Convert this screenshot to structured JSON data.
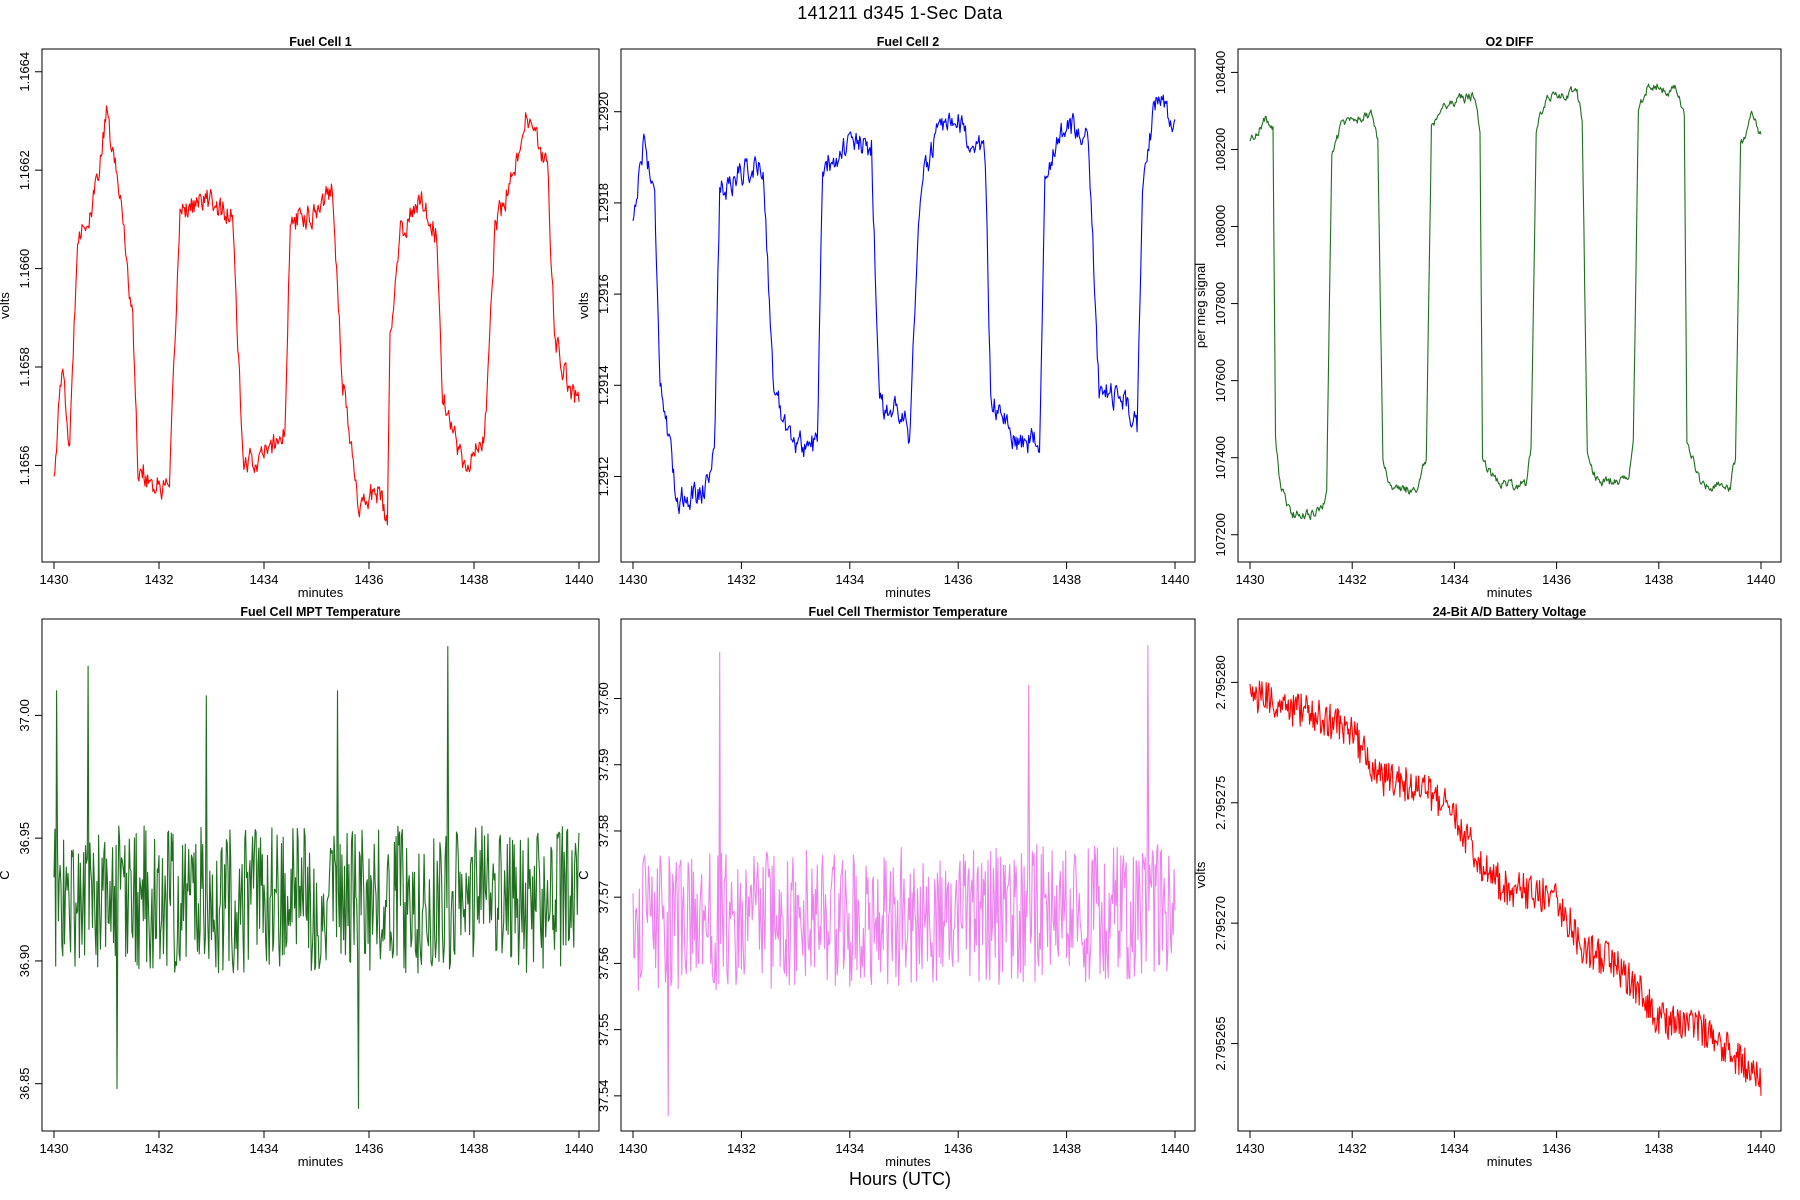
{
  "figure": {
    "title": "141211   d345   1-Sec Data",
    "xcaption": "Hours (UTC)"
  },
  "chart_data": [
    {
      "type": "line",
      "title": "Fuel Cell 1",
      "xlabel": "minutes",
      "ylabel": "volts",
      "color": "#ff0000",
      "xlim": [
        1430,
        1440
      ],
      "ylim": [
        1.16542,
        1.16643
      ],
      "xticks": [
        1430,
        1432,
        1434,
        1436,
        1438,
        1440
      ],
      "yticks": [
        1.1656,
        1.1658,
        1.166,
        1.1662,
        1.1664
      ],
      "ytick_labels": [
        "1.1656",
        "1.1658",
        "1.1660",
        "1.1662",
        "1.1664"
      ],
      "anchors": [
        [
          1430,
          1.16558
        ],
        [
          1430.15,
          1.1658
        ],
        [
          1430.3,
          1.16563
        ],
        [
          1430.45,
          1.16608
        ],
        [
          1430.7,
          1.1661
        ],
        [
          1431,
          1.16631
        ],
        [
          1431.3,
          1.16612
        ],
        [
          1431.5,
          1.16589
        ],
        [
          1431.6,
          1.1656
        ],
        [
          1431.9,
          1.16556
        ],
        [
          1432.2,
          1.16555
        ],
        [
          1432.4,
          1.16612
        ],
        [
          1433,
          1.16614
        ],
        [
          1433.4,
          1.1661
        ],
        [
          1433.6,
          1.1656
        ],
        [
          1434,
          1.16562
        ],
        [
          1434.4,
          1.16567
        ],
        [
          1434.5,
          1.16609
        ],
        [
          1435,
          1.16612
        ],
        [
          1435.3,
          1.16617
        ],
        [
          1435.5,
          1.16577
        ],
        [
          1435.8,
          1.16552
        ],
        [
          1436.2,
          1.16555
        ],
        [
          1436.35,
          1.16547
        ],
        [
          1436.4,
          1.16585
        ],
        [
          1436.6,
          1.16607
        ],
        [
          1437,
          1.16615
        ],
        [
          1437.3,
          1.16606
        ],
        [
          1437.4,
          1.16575
        ],
        [
          1437.8,
          1.1656
        ],
        [
          1438.2,
          1.16565
        ],
        [
          1438.4,
          1.16608
        ],
        [
          1438.8,
          1.16621
        ],
        [
          1439,
          1.16631
        ],
        [
          1439.4,
          1.1662
        ],
        [
          1439.55,
          1.16585
        ],
        [
          1439.8,
          1.16576
        ],
        [
          1440,
          1.16573
        ]
      ],
      "noise": 4e-05
    },
    {
      "type": "line",
      "title": "Fuel Cell 2",
      "xlabel": "minutes",
      "ylabel": "volts",
      "color": "#0000ff",
      "xlim": [
        1430,
        1440
      ],
      "ylim": [
        1.29103,
        1.29212
      ],
      "xticks": [
        1430,
        1432,
        1434,
        1436,
        1438,
        1440
      ],
      "yticks": [
        1.2912,
        1.2914,
        1.2916,
        1.2918,
        1.292
      ],
      "ytick_labels": [
        "1.2912",
        "1.2914",
        "1.2916",
        "1.2918",
        "1.2920"
      ],
      "anchors": [
        [
          1430,
          1.29176
        ],
        [
          1430.2,
          1.29194
        ],
        [
          1430.4,
          1.29181
        ],
        [
          1430.5,
          1.29142
        ],
        [
          1430.8,
          1.29115
        ],
        [
          1431.3,
          1.29117
        ],
        [
          1431.5,
          1.29125
        ],
        [
          1431.6,
          1.29182
        ],
        [
          1432,
          1.29187
        ],
        [
          1432.4,
          1.29188
        ],
        [
          1432.6,
          1.29138
        ],
        [
          1433,
          1.29127
        ],
        [
          1433.4,
          1.29127
        ],
        [
          1433.5,
          1.29188
        ],
        [
          1434,
          1.29193
        ],
        [
          1434.4,
          1.29192
        ],
        [
          1434.55,
          1.29135
        ],
        [
          1435,
          1.29135
        ],
        [
          1435.1,
          1.29128
        ],
        [
          1435.3,
          1.29183
        ],
        [
          1435.6,
          1.29195
        ],
        [
          1436,
          1.29197
        ],
        [
          1436.5,
          1.2919
        ],
        [
          1436.6,
          1.29138
        ],
        [
          1437,
          1.29128
        ],
        [
          1437.5,
          1.29128
        ],
        [
          1437.6,
          1.29187
        ],
        [
          1438,
          1.29197
        ],
        [
          1438.4,
          1.29195
        ],
        [
          1438.6,
          1.29138
        ],
        [
          1439,
          1.29138
        ],
        [
          1439.3,
          1.29131
        ],
        [
          1439.4,
          1.29186
        ],
        [
          1439.7,
          1.29205
        ],
        [
          1440,
          1.29196
        ]
      ],
      "noise": 4.5e-05
    },
    {
      "type": "line",
      "title": "O2 DIFF",
      "xlabel": "minutes",
      "ylabel": "per meg signal",
      "color": "#1e6e1e",
      "xlim": [
        1430,
        1440
      ],
      "ylim": [
        107150,
        108440
      ],
      "xticks": [
        1430,
        1432,
        1434,
        1436,
        1438,
        1440
      ],
      "yticks": [
        107200,
        107400,
        107600,
        107800,
        108000,
        108200,
        108400
      ],
      "ytick_labels": [
        "107200",
        "107400",
        "107600",
        "107800",
        "108000",
        "108200",
        "108400"
      ],
      "anchors": [
        [
          1430,
          108220
        ],
        [
          1430.3,
          108280
        ],
        [
          1430.45,
          108250
        ],
        [
          1430.5,
          107450
        ],
        [
          1430.6,
          107320
        ],
        [
          1430.8,
          107250
        ],
        [
          1431.4,
          107260
        ],
        [
          1431.5,
          107320
        ],
        [
          1431.6,
          108180
        ],
        [
          1431.8,
          108270
        ],
        [
          1432.4,
          108290
        ],
        [
          1432.5,
          108220
        ],
        [
          1432.6,
          107400
        ],
        [
          1432.8,
          107310
        ],
        [
          1433.3,
          107320
        ],
        [
          1433.45,
          107400
        ],
        [
          1433.55,
          108260
        ],
        [
          1433.8,
          108320
        ],
        [
          1434.4,
          108340
        ],
        [
          1434.5,
          108250
        ],
        [
          1434.55,
          107400
        ],
        [
          1434.8,
          107340
        ],
        [
          1435.4,
          107330
        ],
        [
          1435.5,
          107420
        ],
        [
          1435.6,
          108250
        ],
        [
          1435.8,
          108330
        ],
        [
          1436.4,
          108350
        ],
        [
          1436.5,
          108280
        ],
        [
          1436.6,
          107400
        ],
        [
          1436.8,
          107340
        ],
        [
          1437.4,
          107340
        ],
        [
          1437.5,
          107430
        ],
        [
          1437.6,
          108300
        ],
        [
          1437.8,
          108370
        ],
        [
          1438.4,
          108350
        ],
        [
          1438.5,
          108280
        ],
        [
          1438.55,
          107430
        ],
        [
          1438.8,
          107340
        ],
        [
          1439.4,
          107320
        ],
        [
          1439.5,
          107400
        ],
        [
          1439.6,
          108200
        ],
        [
          1439.8,
          108290
        ],
        [
          1440,
          108240
        ]
      ],
      "noise": 28
    },
    {
      "type": "line",
      "title": "Fuel Cell MPT Temperature",
      "xlabel": "minutes",
      "ylabel": "C",
      "color": "#1e6e1e",
      "xlim": [
        1430,
        1440
      ],
      "ylim": [
        36.834,
        37.036
      ],
      "xticks": [
        1430,
        1432,
        1434,
        1436,
        1438,
        1440
      ],
      "yticks": [
        36.85,
        36.9,
        36.95,
        37
      ],
      "ytick_labels": [
        "36.85",
        "36.90",
        "36.95",
        "37.00"
      ],
      "anchors": [
        [
          1430,
          36.925
        ],
        [
          1440,
          36.925
        ]
      ],
      "noise": 0.03,
      "spikes": [
        [
          1430.05,
          37.01
        ],
        [
          1430.65,
          37.02
        ],
        [
          1432.9,
          37.008
        ],
        [
          1435.4,
          37.01
        ],
        [
          1437.5,
          37.028
        ],
        [
          1435.8,
          36.84
        ],
        [
          1431.2,
          36.848
        ]
      ]
    },
    {
      "type": "line",
      "title": "Fuel Cell Thermistor Temperature",
      "xlabel": "minutes",
      "ylabel": "C",
      "color": "#ee82ee",
      "xlim": [
        1430,
        1440
      ],
      "ylim": [
        37.5359,
        37.6108
      ],
      "xticks": [
        1430,
        1432,
        1434,
        1436,
        1438,
        1440
      ],
      "yticks": [
        37.54,
        37.55,
        37.56,
        37.57,
        37.58,
        37.59,
        37.6
      ],
      "ytick_labels": [
        "37.54",
        "37.55",
        "37.56",
        "37.57",
        "37.58",
        "37.59",
        "37.60"
      ],
      "anchors": [
        [
          1430,
          37.566
        ],
        [
          1440,
          37.568
        ]
      ],
      "noise": 0.0105,
      "spikes": [
        [
          1431.6,
          37.607
        ],
        [
          1439.5,
          37.608
        ],
        [
          1430.65,
          37.537
        ],
        [
          1437.3,
          37.602
        ]
      ]
    },
    {
      "type": "line",
      "title": "24-Bit A/D Battery Voltage",
      "xlabel": "minutes",
      "ylabel": "volts",
      "color": "#ff0000",
      "xlim": [
        1430,
        1440
      ],
      "ylim": [
        2.7952617,
        2.7952823
      ],
      "xticks": [
        1430,
        1432,
        1434,
        1436,
        1438,
        1440
      ],
      "yticks": [
        2.795265,
        2.79527,
        2.795275,
        2.79528
      ],
      "ytick_labels": [
        "2.795265",
        "2.795270",
        "2.795275",
        "2.795280"
      ],
      "anchors": [
        [
          1430,
          2.7952795
        ],
        [
          1431,
          2.7952788
        ],
        [
          1432,
          2.795278
        ],
        [
          1432.5,
          2.795276
        ],
        [
          1433.5,
          2.7952755
        ],
        [
          1434,
          2.7952745
        ],
        [
          1434.5,
          2.7952725
        ],
        [
          1435,
          2.7952715
        ],
        [
          1436,
          2.795271
        ],
        [
          1436.5,
          2.795269
        ],
        [
          1437,
          2.7952685
        ],
        [
          1437.5,
          2.7952675
        ],
        [
          1438,
          2.795266
        ],
        [
          1439,
          2.7952655
        ],
        [
          1440,
          2.7952635
        ]
      ],
      "noise": 7.5e-07
    }
  ]
}
